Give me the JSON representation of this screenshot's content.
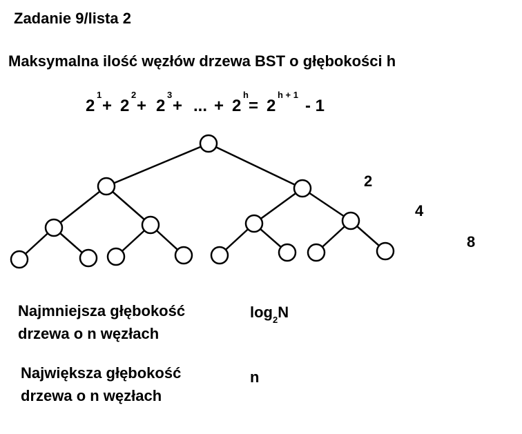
{
  "title": "Zadanie 9/lista 2",
  "heading": "Maksymalna ilość węzłów drzewa BST o głębokości h",
  "formula": {
    "terms": [
      {
        "base": "2",
        "exp": "1",
        "after": "+"
      },
      {
        "base": "2",
        "exp": "2",
        "after": "+"
      },
      {
        "base": "2",
        "exp": "3",
        "after": "+"
      },
      {
        "base": "...",
        "exp": "",
        "after": "+"
      },
      {
        "base": "2",
        "exp": "h",
        "after": "="
      },
      {
        "base": "2",
        "exp": "h + 1",
        "after": "- 1"
      }
    ]
  },
  "level_counts": [
    "2",
    "4",
    "8"
  ],
  "min_depth": {
    "label_line1": "Najmniejsza głębokość",
    "label_line2": "drzewa o n węzłach",
    "value_main": "log",
    "value_sub": "2",
    "value_tail": "N"
  },
  "max_depth": {
    "label_line1": "Największa głębokość",
    "label_line2": "drzewa o n węzłach",
    "value": "n"
  }
}
